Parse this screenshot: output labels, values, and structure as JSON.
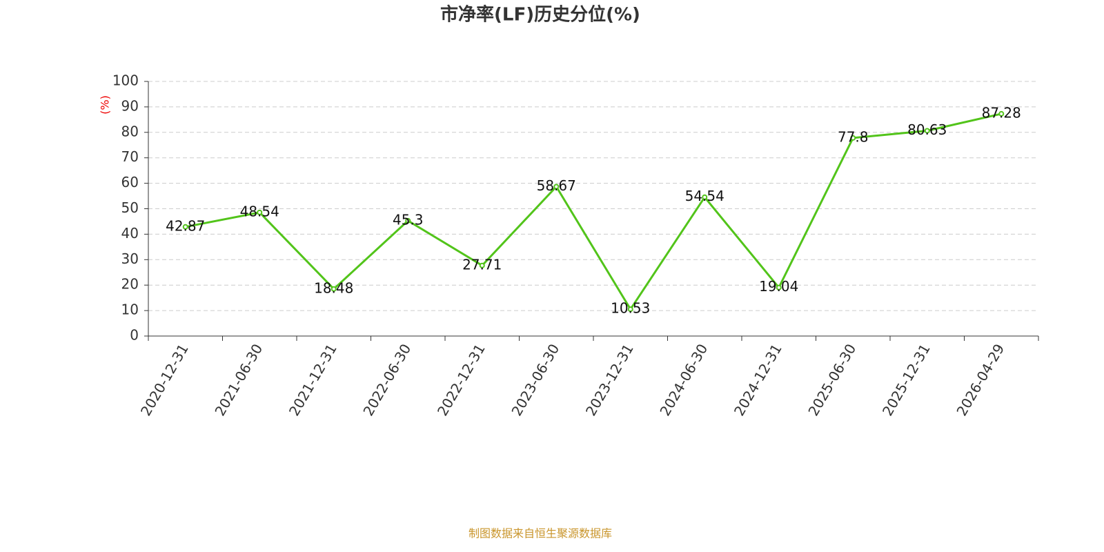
{
  "chart_data": {
    "type": "line",
    "title": "市净率(LF)历史分位(%)",
    "y_label": "(%)",
    "categories": [
      "2020-12-31",
      "2021-06-30",
      "2021-12-31",
      "2022-06-30",
      "2022-12-31",
      "2023-06-30",
      "2023-12-31",
      "2024-06-30",
      "2024-12-31",
      "2025-06-30",
      "2025-12-31",
      "2026-04-29"
    ],
    "series": [
      {
        "name": "市净率(LF)历史分位",
        "color": "#52c41a",
        "values": [
          42.87,
          48.54,
          18.48,
          45.3,
          27.71,
          58.67,
          10.53,
          54.54,
          19.04,
          77.8,
          80.63,
          87.28
        ]
      }
    ],
    "ylim": [
      0,
      100
    ],
    "yticks": [
      0,
      10,
      20,
      30,
      40,
      50,
      60,
      70,
      80,
      90,
      100
    ],
    "grid": true,
    "source": "制图数据来自恒生聚源数据库"
  }
}
